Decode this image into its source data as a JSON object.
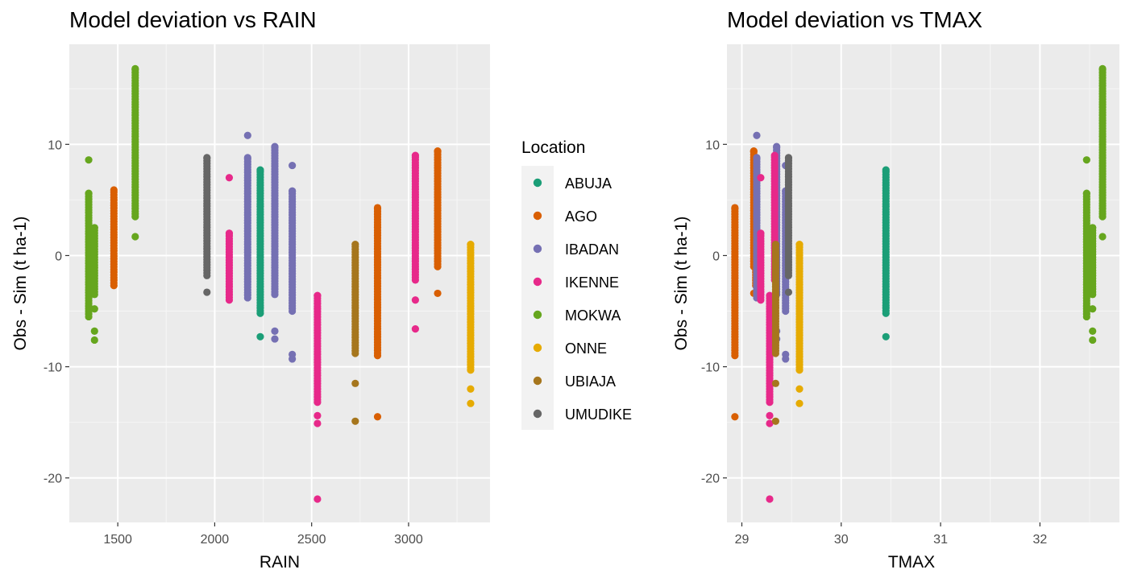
{
  "legend": {
    "title": "Location",
    "entries": [
      {
        "label": "ABUJA",
        "color": "#1b9e77"
      },
      {
        "label": "AGO",
        "color": "#d95f02"
      },
      {
        "label": "IBADAN",
        "color": "#7570b3"
      },
      {
        "label": "IKENNE",
        "color": "#e7298a"
      },
      {
        "label": "MOKWA",
        "color": "#66a61e"
      },
      {
        "label": "ONNE",
        "color": "#e6ab02"
      },
      {
        "label": "UBIAJA",
        "color": "#a6761d"
      },
      {
        "label": "UMUDIKE",
        "color": "#666666"
      }
    ]
  },
  "chart_data": [
    {
      "type": "scatter",
      "title": "Model deviation vs RAIN",
      "xlabel": "RAIN",
      "ylabel": "Obs - Sim (t ha-1)",
      "xlim": [
        1250,
        3420
      ],
      "ylim": [
        -24,
        19
      ],
      "x_ticks": [
        1500,
        2000,
        2500,
        3000
      ],
      "x_tick_labels": [
        "1500",
        "2000",
        "2500",
        "3000"
      ],
      "y_ticks": [
        10,
        0,
        -10,
        -20
      ],
      "y_tick_labels": [
        "10",
        "0",
        "-10",
        "-20"
      ],
      "series": [
        {
          "name": "ABUJA",
          "color": "#1b9e77",
          "x": 2235,
          "y_range": [
            -5.2,
            7.7
          ],
          "extra_y": [
            -7.3
          ]
        },
        {
          "name": "AGO",
          "color": "#d95f02",
          "x": 1480,
          "y_range": [
            -2.7,
            5.9
          ],
          "extra_y": []
        },
        {
          "name": "AGO",
          "color": "#d95f02",
          "x": 2840,
          "y_range": [
            -9.0,
            4.3
          ],
          "extra_y": [
            -14.5
          ]
        },
        {
          "name": "AGO",
          "color": "#d95f02",
          "x": 3150,
          "y_range": [
            -1.0,
            9.4
          ],
          "extra_y": [
            -3.4
          ]
        },
        {
          "name": "IBADAN",
          "color": "#7570b3",
          "x": 2170,
          "y_range": [
            -3.8,
            8.8
          ],
          "extra_y": [
            10.8
          ]
        },
        {
          "name": "IBADAN",
          "color": "#7570b3",
          "x": 2310,
          "y_range": [
            -3.5,
            9.8
          ],
          "extra_y": [
            -6.8,
            -7.5
          ]
        },
        {
          "name": "IBADAN",
          "color": "#7570b3",
          "x": 2400,
          "y_range": [
            -5.0,
            5.8
          ],
          "extra_y": [
            8.1,
            -8.9,
            -9.3
          ]
        },
        {
          "name": "IKENNE",
          "color": "#e7298a",
          "x": 2075,
          "y_range": [
            -4.0,
            2.0
          ],
          "extra_y": [
            7.0
          ]
        },
        {
          "name": "IKENNE",
          "color": "#e7298a",
          "x": 2530,
          "y_range": [
            -13.2,
            -3.6
          ],
          "extra_y": [
            -14.4,
            -15.1,
            -21.9
          ]
        },
        {
          "name": "IKENNE",
          "color": "#e7298a",
          "x": 3035,
          "y_range": [
            -2.2,
            9.0
          ],
          "extra_y": [
            -4.0,
            -6.6
          ]
        },
        {
          "name": "MOKWA",
          "color": "#66a61e",
          "x": 1350,
          "y_range": [
            -5.5,
            5.6
          ],
          "extra_y": [
            8.6
          ]
        },
        {
          "name": "MOKWA",
          "color": "#66a61e",
          "x": 1380,
          "y_range": [
            -3.5,
            2.5
          ],
          "extra_y": [
            -4.8,
            -6.8,
            -7.6
          ]
        },
        {
          "name": "MOKWA",
          "color": "#66a61e",
          "x": 1590,
          "y_range": [
            3.5,
            16.8
          ],
          "extra_y": [
            1.7
          ]
        },
        {
          "name": "ONNE",
          "color": "#e6ab02",
          "x": 3320,
          "y_range": [
            -10.3,
            1.0
          ],
          "extra_y": [
            -12.0,
            -13.3
          ]
        },
        {
          "name": "UBIAJA",
          "color": "#a6761d",
          "x": 2725,
          "y_range": [
            -8.8,
            1.0
          ],
          "extra_y": [
            -11.5,
            -14.9
          ]
        },
        {
          "name": "UMUDIKE",
          "color": "#666666",
          "x": 1960,
          "y_range": [
            -1.8,
            8.8
          ],
          "extra_y": [
            -3.3
          ]
        }
      ]
    },
    {
      "type": "scatter",
      "title": "Model deviation vs TMAX",
      "xlabel": "TMAX",
      "ylabel": "Obs - Sim (t ha-1)",
      "xlim": [
        28.85,
        32.8
      ],
      "ylim": [
        -24,
        19
      ],
      "x_ticks": [
        29,
        30,
        31,
        32
      ],
      "x_tick_labels": [
        "29",
        "30",
        "31",
        "32"
      ],
      "y_ticks": [
        10,
        0,
        -10,
        -20
      ],
      "y_tick_labels": [
        "10",
        "0",
        "-10",
        "-20"
      ],
      "series": [
        {
          "name": "AGO",
          "color": "#d95f02",
          "x": 28.93,
          "y_range": [
            -9.0,
            4.3
          ],
          "extra_y": [
            -14.5
          ]
        },
        {
          "name": "AGO",
          "color": "#d95f02",
          "x": 29.12,
          "y_range": [
            -1.0,
            9.4
          ],
          "extra_y": [
            -3.4
          ]
        },
        {
          "name": "AGO",
          "color": "#d95f02",
          "x": 29.14,
          "y_range": [
            -2.7,
            5.9
          ],
          "extra_y": []
        },
        {
          "name": "IBADAN",
          "color": "#7570b3",
          "x": 29.15,
          "y_range": [
            -3.8,
            8.8
          ],
          "extra_y": [
            10.8
          ]
        },
        {
          "name": "IBADAN",
          "color": "#7570b3",
          "x": 29.35,
          "y_range": [
            -3.5,
            9.8
          ],
          "extra_y": [
            -6.8,
            -7.5
          ]
        },
        {
          "name": "IBADAN",
          "color": "#7570b3",
          "x": 29.44,
          "y_range": [
            -5.0,
            5.8
          ],
          "extra_y": [
            8.1,
            -8.9,
            -9.3
          ]
        },
        {
          "name": "IKENNE",
          "color": "#e7298a",
          "x": 29.19,
          "y_range": [
            -4.0,
            2.0
          ],
          "extra_y": [
            7.0
          ]
        },
        {
          "name": "IKENNE",
          "color": "#e7298a",
          "x": 29.28,
          "y_range": [
            -13.2,
            -3.6
          ],
          "extra_y": [
            -14.4,
            -15.1,
            -21.9
          ]
        },
        {
          "name": "IKENNE",
          "color": "#e7298a",
          "x": 29.33,
          "y_range": [
            -2.2,
            9.0
          ],
          "extra_y": [
            -4.0,
            -6.6
          ]
        },
        {
          "name": "UBIAJA",
          "color": "#a6761d",
          "x": 29.34,
          "y_range": [
            -8.8,
            1.0
          ],
          "extra_y": [
            -11.5,
            -14.9
          ]
        },
        {
          "name": "UMUDIKE",
          "color": "#666666",
          "x": 29.47,
          "y_range": [
            -1.8,
            8.8
          ],
          "extra_y": [
            -3.3
          ]
        },
        {
          "name": "ONNE",
          "color": "#e6ab02",
          "x": 29.58,
          "y_range": [
            -10.3,
            1.0
          ],
          "extra_y": [
            -12.0,
            -13.3
          ]
        },
        {
          "name": "ABUJA",
          "color": "#1b9e77",
          "x": 30.45,
          "y_range": [
            -5.2,
            7.7
          ],
          "extra_y": [
            -7.3
          ]
        },
        {
          "name": "MOKWA",
          "color": "#66a61e",
          "x": 32.47,
          "y_range": [
            -5.5,
            5.6
          ],
          "extra_y": [
            8.6
          ]
        },
        {
          "name": "MOKWA",
          "color": "#66a61e",
          "x": 32.53,
          "y_range": [
            -3.5,
            2.5
          ],
          "extra_y": [
            -4.8,
            -6.8,
            -7.6
          ]
        },
        {
          "name": "MOKWA",
          "color": "#66a61e",
          "x": 32.63,
          "y_range": [
            3.5,
            16.8
          ],
          "extra_y": [
            1.7
          ]
        }
      ]
    }
  ]
}
